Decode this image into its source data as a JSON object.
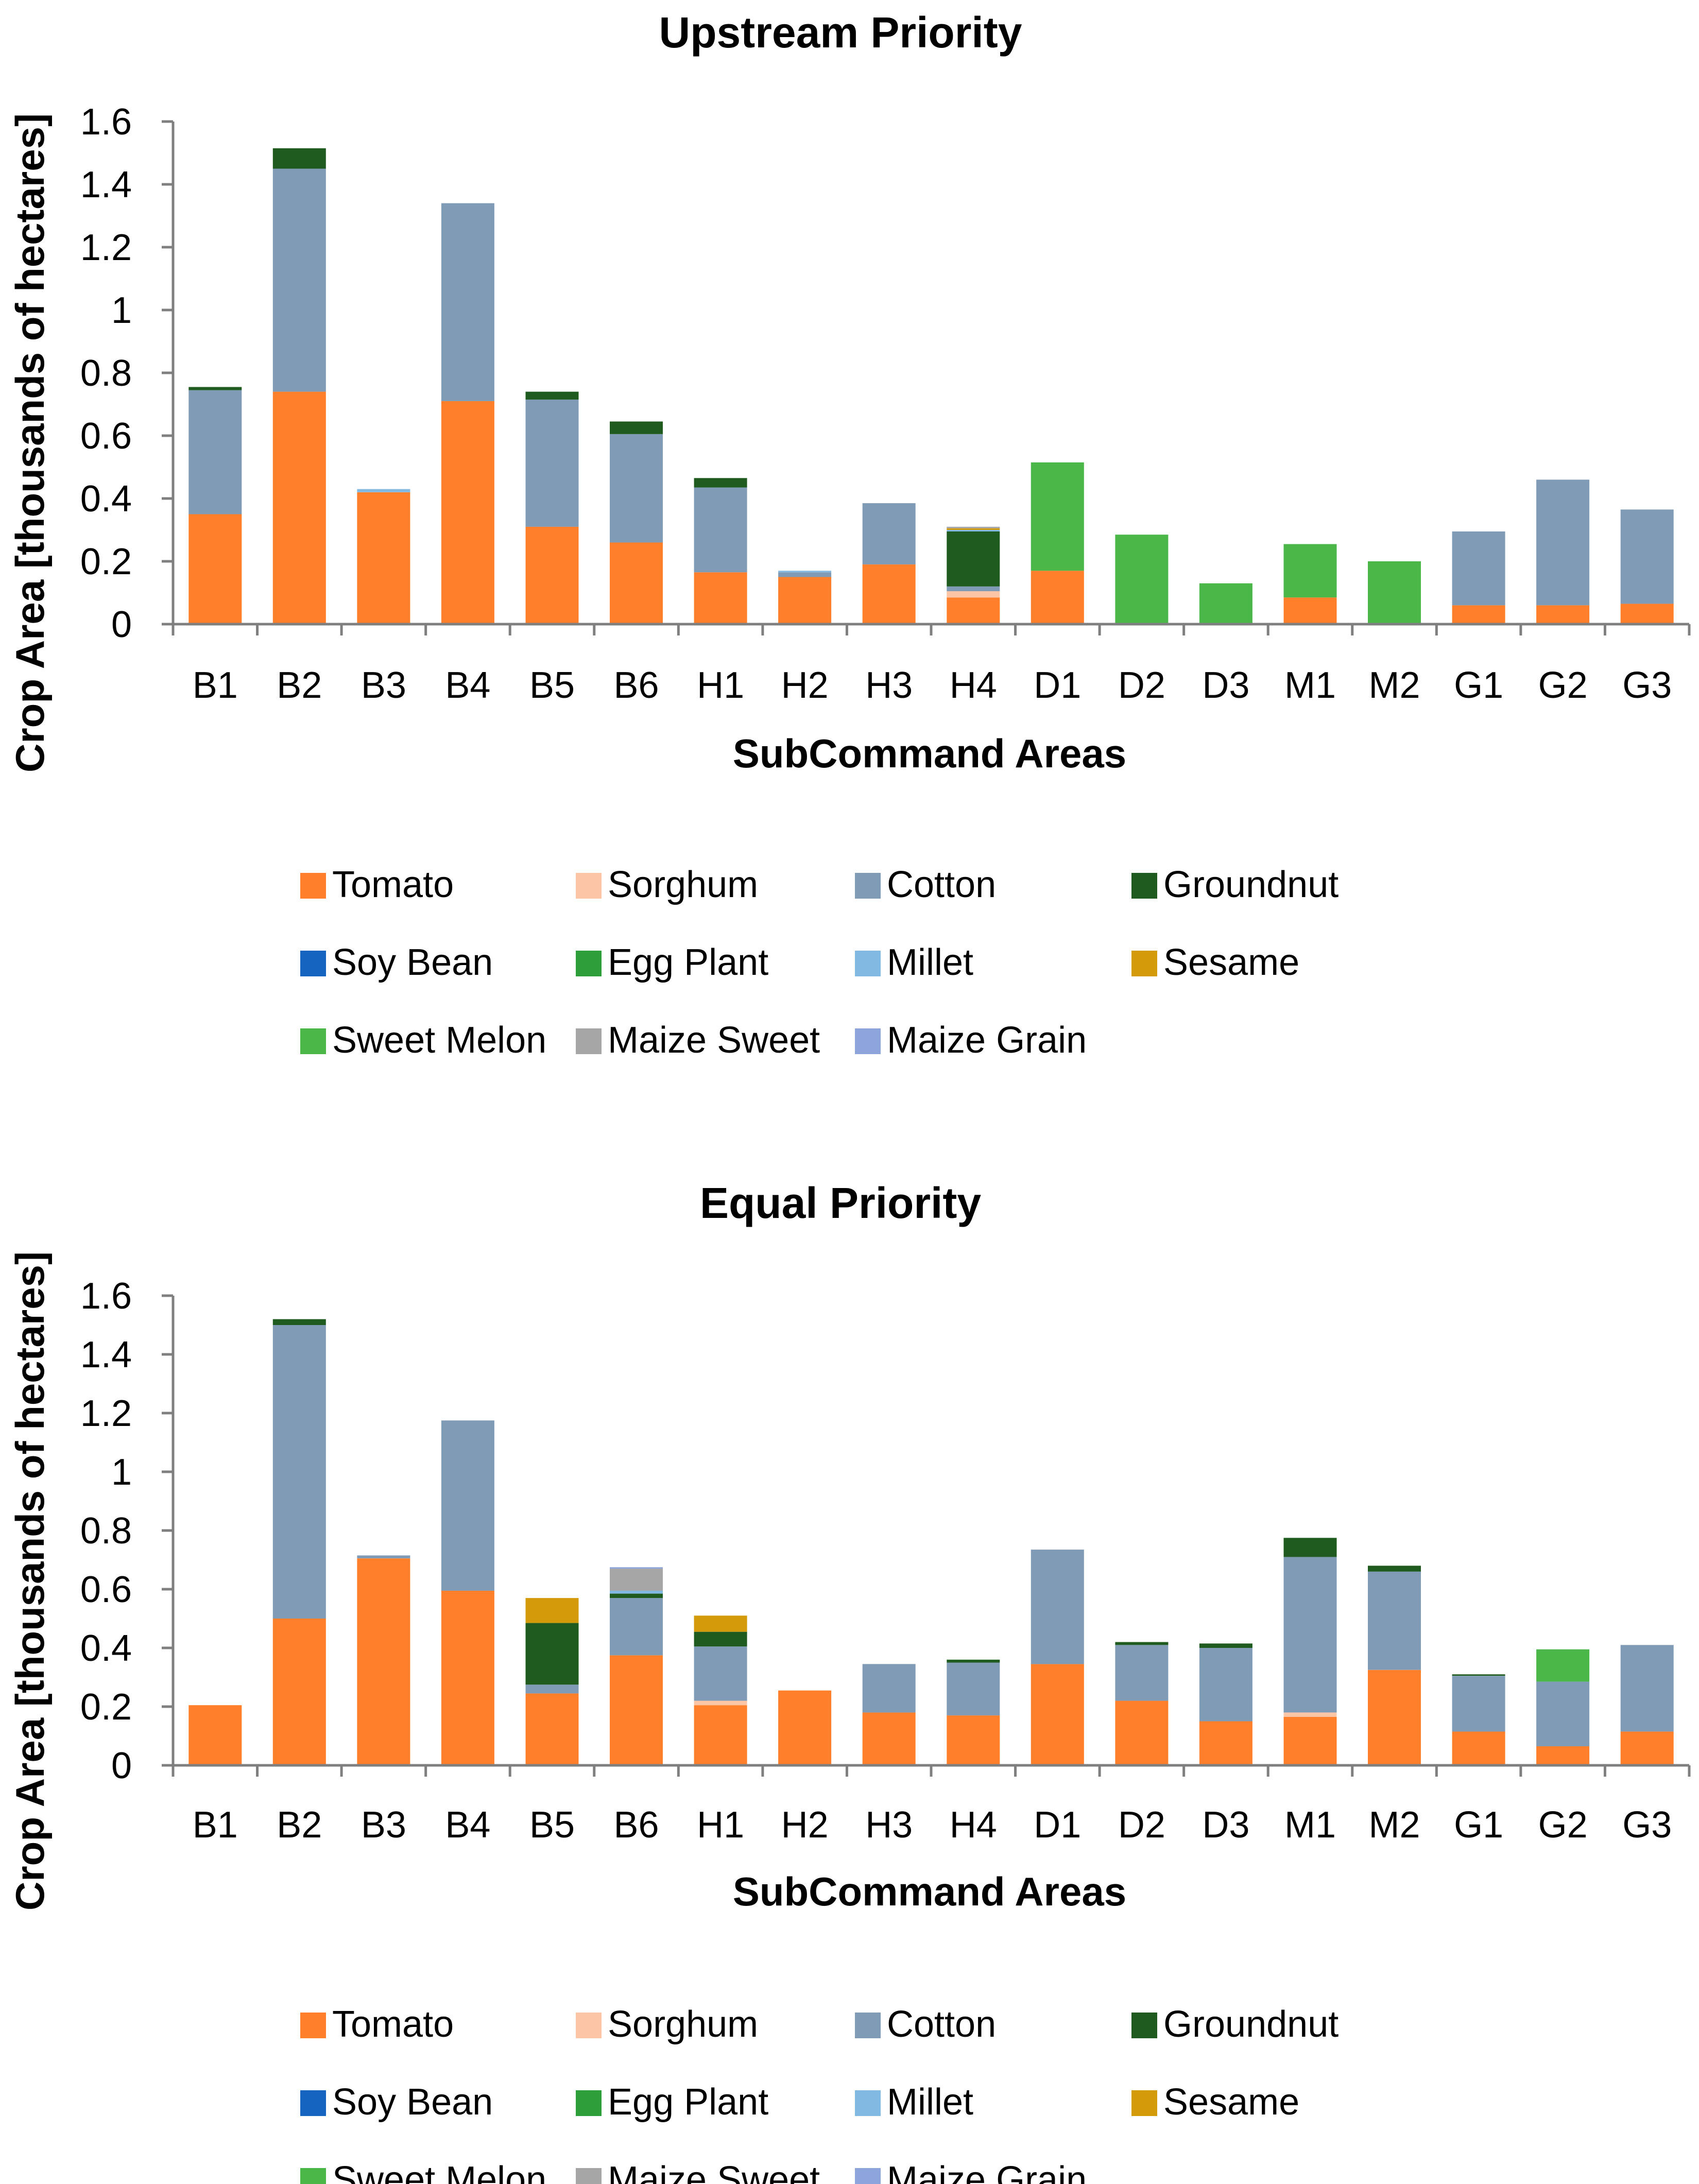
{
  "chart_data": [
    {
      "type": "bar",
      "stacked": true,
      "title": "Upstream Priority",
      "xlabel": "SubCommand Areas",
      "ylabel": "Crop Area [thousands of hectares]",
      "ylim": [
        0,
        1.6
      ],
      "yticks": [
        "0",
        "0.2",
        "0.4",
        "0.6",
        "0.8",
        "1",
        "1.2",
        "1.4",
        "1.6"
      ],
      "grid": false,
      "legend": "bottom",
      "categories": [
        "B1",
        "B2",
        "B3",
        "B4",
        "B5",
        "B6",
        "H1",
        "H2",
        "H3",
        "H4",
        "D1",
        "D2",
        "D3",
        "M1",
        "M2",
        "G1",
        "G2",
        "G3"
      ],
      "series": [
        {
          "name": "Tomato",
          "color": "#ff7f2a",
          "values": [
            0.35,
            0.74,
            0.42,
            0.71,
            0.31,
            0.26,
            0.165,
            0.15,
            0.19,
            0.085,
            0.17,
            0,
            0,
            0.085,
            0,
            0.06,
            0.06,
            0.065
          ]
        },
        {
          "name": "Sorghum",
          "color": "#fcc5a6",
          "values": [
            0,
            0,
            0,
            0,
            0,
            0,
            0,
            0,
            0,
            0.02,
            0,
            0,
            0,
            0,
            0,
            0,
            0,
            0
          ]
        },
        {
          "name": "Cotton",
          "color": "#7f9bb6",
          "values": [
            0.395,
            0.71,
            0,
            0.63,
            0.405,
            0.345,
            0.27,
            0.015,
            0.195,
            0.015,
            0,
            0,
            0,
            0,
            0,
            0.235,
            0.4,
            0.3
          ]
        },
        {
          "name": "Groundnut",
          "color": "#1f5a1f",
          "values": [
            0.01,
            0.065,
            0,
            0,
            0.025,
            0.04,
            0.03,
            0,
            0,
            0.175,
            0,
            0,
            0,
            0,
            0,
            0,
            0,
            0
          ]
        },
        {
          "name": "Soy Bean",
          "color": "#1565c0",
          "values": [
            0,
            0,
            0,
            0,
            0,
            0,
            0,
            0,
            0,
            0,
            0,
            0,
            0,
            0,
            0,
            0,
            0,
            0
          ]
        },
        {
          "name": "Egg Plant",
          "color": "#2e9e3a",
          "values": [
            0,
            0,
            0,
            0,
            0,
            0,
            0,
            0,
            0,
            0,
            0,
            0,
            0,
            0,
            0,
            0,
            0,
            0
          ]
        },
        {
          "name": "Millet",
          "color": "#82b9e3",
          "values": [
            0,
            0,
            0.01,
            0,
            0,
            0,
            0,
            0.005,
            0,
            0.005,
            0,
            0,
            0,
            0,
            0,
            0,
            0,
            0
          ]
        },
        {
          "name": "Sesame",
          "color": "#d39a09",
          "values": [
            0,
            0,
            0,
            0,
            0,
            0,
            0,
            0,
            0,
            0.005,
            0,
            0,
            0,
            0,
            0,
            0,
            0,
            0
          ]
        },
        {
          "name": "Sweet Melon",
          "color": "#4bb748",
          "values": [
            0,
            0,
            0,
            0,
            0,
            0,
            0,
            0,
            0,
            0,
            0.345,
            0.285,
            0.13,
            0.17,
            0.2,
            0,
            0,
            0
          ]
        },
        {
          "name": "Maize Sweet",
          "color": "#a6a6a6",
          "values": [
            0,
            0,
            0,
            0,
            0,
            0,
            0,
            0,
            0,
            0.005,
            0,
            0,
            0,
            0,
            0,
            0,
            0,
            0
          ]
        },
        {
          "name": "Maize Grain",
          "color": "#8ea5db",
          "values": [
            0,
            0,
            0,
            0,
            0,
            0,
            0,
            0,
            0,
            0,
            0,
            0,
            0,
            0,
            0,
            0,
            0,
            0
          ]
        }
      ]
    },
    {
      "type": "bar",
      "stacked": true,
      "title": "Equal Priority",
      "xlabel": "SubCommand Areas",
      "ylabel": "Crop Area [thousands of hectares]",
      "ylim": [
        0,
        1.6
      ],
      "yticks": [
        "0",
        "0.2",
        "0.4",
        "0.6",
        "0.8",
        "1",
        "1.2",
        "1.4",
        "1.6"
      ],
      "grid": false,
      "legend": "bottom",
      "categories": [
        "B1",
        "B2",
        "B3",
        "B4",
        "B5",
        "B6",
        "H1",
        "H2",
        "H3",
        "H4",
        "D1",
        "D2",
        "D3",
        "M1",
        "M2",
        "G1",
        "G2",
        "G3"
      ],
      "series": [
        {
          "name": "Tomato",
          "color": "#ff7f2a",
          "values": [
            0.205,
            0.5,
            0.705,
            0.595,
            0.245,
            0.375,
            0.205,
            0.255,
            0.18,
            0.17,
            0.345,
            0.22,
            0.15,
            0.165,
            0.325,
            0.115,
            0.065,
            0.115
          ]
        },
        {
          "name": "Sorghum",
          "color": "#fcc5a6",
          "values": [
            0,
            0,
            0,
            0,
            0,
            0,
            0.015,
            0,
            0,
            0,
            0,
            0,
            0,
            0.015,
            0,
            0,
            0,
            0
          ]
        },
        {
          "name": "Cotton",
          "color": "#7f9bb6",
          "values": [
            0,
            1.0,
            0.01,
            0.58,
            0.03,
            0.195,
            0.185,
            0,
            0.165,
            0.18,
            0.39,
            0.19,
            0.25,
            0.53,
            0.335,
            0.19,
            0.22,
            0.295
          ]
        },
        {
          "name": "Groundnut",
          "color": "#1f5a1f",
          "values": [
            0,
            0.02,
            0,
            0,
            0.21,
            0.015,
            0.05,
            0,
            0,
            0.01,
            0,
            0.01,
            0.015,
            0.065,
            0.02,
            0.005,
            0,
            0
          ]
        },
        {
          "name": "Soy Bean",
          "color": "#1565c0",
          "values": [
            0,
            0,
            0,
            0,
            0,
            0,
            0,
            0,
            0,
            0,
            0,
            0,
            0,
            0,
            0,
            0,
            0,
            0
          ]
        },
        {
          "name": "Egg Plant",
          "color": "#2e9e3a",
          "values": [
            0,
            0,
            0,
            0,
            0,
            0,
            0,
            0,
            0,
            0,
            0,
            0,
            0,
            0,
            0,
            0,
            0,
            0
          ]
        },
        {
          "name": "Millet",
          "color": "#82b9e3",
          "values": [
            0,
            0,
            0,
            0,
            0,
            0.01,
            0,
            0,
            0,
            0,
            0,
            0,
            0,
            0,
            0,
            0,
            0,
            0
          ]
        },
        {
          "name": "Sesame",
          "color": "#d39a09",
          "values": [
            0,
            0,
            0,
            0,
            0.085,
            0,
            0.055,
            0,
            0,
            0,
            0,
            0,
            0,
            0,
            0,
            0,
            0,
            0
          ]
        },
        {
          "name": "Sweet Melon",
          "color": "#4bb748",
          "values": [
            0,
            0,
            0,
            0,
            0,
            0,
            0,
            0,
            0,
            0,
            0,
            0,
            0,
            0,
            0,
            0,
            0.11,
            0
          ]
        },
        {
          "name": "Maize Sweet",
          "color": "#a6a6a6",
          "values": [
            0,
            0,
            0,
            0,
            0,
            0.075,
            0,
            0,
            0,
            0,
            0,
            0,
            0,
            0,
            0,
            0,
            0,
            0
          ]
        },
        {
          "name": "Maize Grain",
          "color": "#8ea5db",
          "values": [
            0,
            0,
            0,
            0,
            0,
            0.005,
            0,
            0,
            0,
            0,
            0,
            0,
            0,
            0,
            0,
            0,
            0,
            0
          ]
        }
      ]
    }
  ]
}
